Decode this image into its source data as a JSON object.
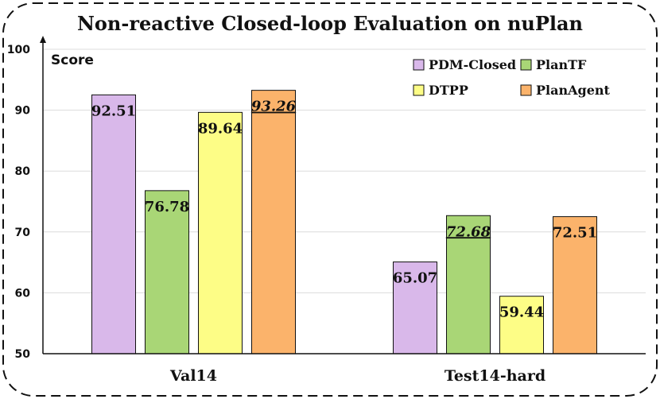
{
  "chart_data": {
    "type": "bar",
    "title": "Non-reactive Closed-loop Evaluation on nuPlan",
    "xlabel": "",
    "ylabel": "Score",
    "ylim": [
      50,
      100
    ],
    "yticks": [
      50,
      60,
      70,
      80,
      90,
      100
    ],
    "grid": true,
    "legend_position": "top-right",
    "categories": [
      "Val14",
      "Test14-hard"
    ],
    "series": [
      {
        "name": "PDM-Closed",
        "color": "#d9b8ea",
        "values": [
          92.51,
          65.07
        ],
        "labels": [
          "92.51",
          "65.07"
        ]
      },
      {
        "name": "PlanTF",
        "color": "#a9d676",
        "values": [
          76.78,
          72.68
        ],
        "labels": [
          "76.78",
          "72.68"
        ]
      },
      {
        "name": "DTPP",
        "color": "#fdfd86",
        "values": [
          89.64,
          59.44
        ],
        "labels": [
          "89.64",
          "59.44"
        ]
      },
      {
        "name": "PlanAgent",
        "color": "#fbb36b",
        "values": [
          93.26,
          72.51
        ],
        "labels": [
          "93.26",
          "72.51"
        ]
      }
    ],
    "highlighted_best": [
      {
        "category": "Val14",
        "series": "PlanAgent",
        "style": "italic-underline"
      },
      {
        "category": "Test14-hard",
        "series": "PlanTF",
        "style": "italic-underline"
      }
    ]
  }
}
